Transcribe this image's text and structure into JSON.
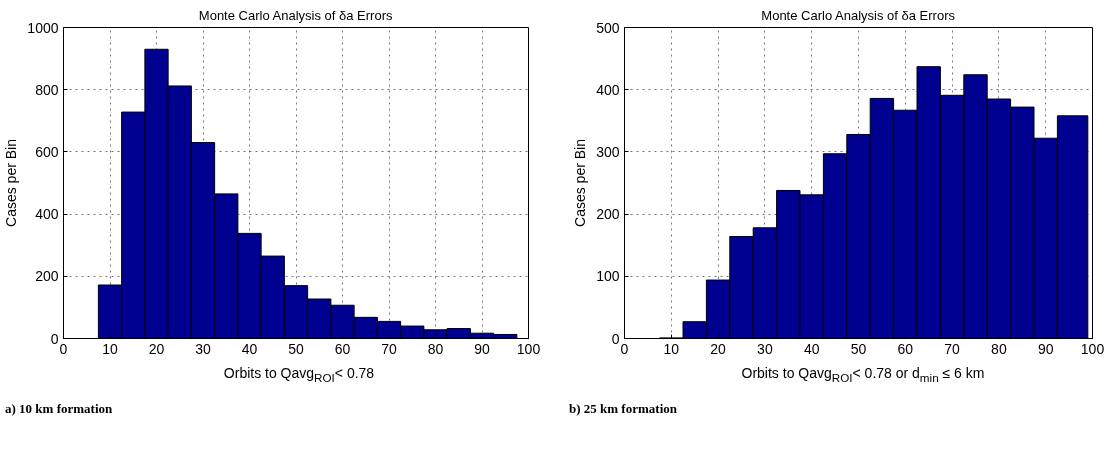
{
  "chart_data": [
    {
      "type": "histogram",
      "title": "Monte Carlo Analysis of δa Errors",
      "xlabel": "Orbits to Qavg$_{ROI}$< 0.78",
      "ylabel": "Cases per Bin",
      "bins": [
        2.5,
        7.5,
        12.5,
        17.5,
        22.5,
        27.5,
        32.5,
        37.5,
        42.5,
        47.5,
        52.5,
        57.5,
        62.5,
        67.5,
        72.5,
        77.5,
        82.5,
        87.5,
        92.5,
        97.5
      ],
      "values": [
        0,
        172,
        728,
        930,
        812,
        630,
        465,
        338,
        265,
        170,
        127,
        107,
        68,
        55,
        40,
        28,
        32,
        17,
        13
      ],
      "color": "#000090",
      "xlim": [
        0,
        100
      ],
      "xticks": [
        0,
        10,
        20,
        30,
        40,
        50,
        60,
        70,
        80,
        90,
        100
      ],
      "ylim": [
        0,
        1000
      ],
      "yticks": [
        0,
        200,
        400,
        600,
        800,
        1000
      ],
      "grid": true,
      "annotations": [
        "a) 10 km formation"
      ]
    },
    {
      "type": "histogram",
      "title": "Monte Carlo Analysis of δa Errors",
      "xlabel": "Orbits to Qavg$_{ROI}$< 0.78 or d$_{min}$ ≤ 6 km",
      "ylabel": "Cases per Bin",
      "bins": [
        2.5,
        7.5,
        12.5,
        17.5,
        22.5,
        27.5,
        32.5,
        37.5,
        42.5,
        47.5,
        52.5,
        57.5,
        62.5,
        67.5,
        72.5,
        77.5,
        82.5,
        87.5,
        92.5,
        99
      ],
      "values": [
        0,
        1,
        27,
        94,
        164,
        178,
        238,
        231,
        297,
        328,
        386,
        367,
        437,
        391,
        424,
        385,
        372,
        322,
        358
      ],
      "color": "#000090",
      "xlim": [
        0,
        100
      ],
      "xticks": [
        0,
        10,
        20,
        30,
        40,
        50,
        60,
        70,
        80,
        90,
        100
      ],
      "ylim": [
        0,
        500
      ],
      "yticks": [
        0,
        100,
        200,
        300,
        400,
        500
      ],
      "grid": true,
      "annotations": [
        "b) 25 km formation"
      ]
    }
  ]
}
